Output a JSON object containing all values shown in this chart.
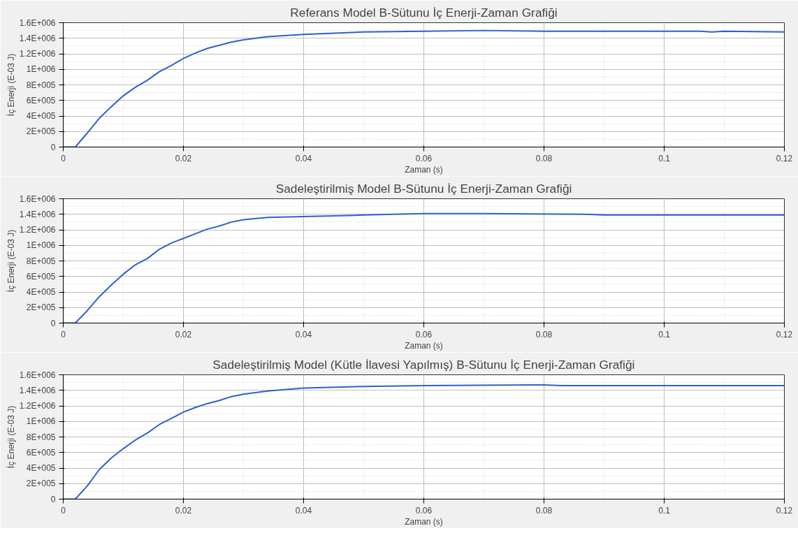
{
  "chart_data": [
    {
      "type": "line",
      "title": "Referans Model B-Sütunu İç Enerji-Zaman Grafiği",
      "xlabel": "Zaman (s)",
      "ylabel": "İç Enerji (E-03 J)",
      "x": [
        0,
        0.002,
        0.004,
        0.006,
        0.008,
        0.01,
        0.012,
        0.014,
        0.016,
        0.018,
        0.02,
        0.022,
        0.024,
        0.026,
        0.028,
        0.03,
        0.034,
        0.04,
        0.05,
        0.06,
        0.07,
        0.08,
        0.1,
        0.106,
        0.108,
        0.11,
        0.12
      ],
      "series": [
        {
          "color": "#2f5fd0",
          "values": [
            0,
            0,
            180000,
            370000,
            520000,
            660000,
            770000,
            860000,
            970000,
            1050000,
            1140000,
            1210000,
            1270000,
            1310000,
            1350000,
            1380000,
            1420000,
            1450000,
            1480000,
            1490000,
            1500000,
            1490000,
            1490000,
            1490000,
            1480000,
            1490000,
            1480000
          ]
        }
      ],
      "xlim": [
        0,
        0.12
      ],
      "xticks": [
        0,
        0.02,
        0.04,
        0.06,
        0.08,
        0.1,
        0.12
      ],
      "ylim": [
        0,
        1600000
      ],
      "yticks": [
        {
          "value": 0,
          "label": "0"
        },
        {
          "value": 200000,
          "label": "2E+005"
        },
        {
          "value": 400000,
          "label": "4E+005"
        },
        {
          "value": 600000,
          "label": "6E+005"
        },
        {
          "value": 800000,
          "label": "8E+005"
        },
        {
          "value": 1000000,
          "label": "1E+006"
        },
        {
          "value": 1200000,
          "label": "1.2E+006"
        },
        {
          "value": 1400000,
          "label": "1.4E+006"
        },
        {
          "value": 1600000,
          "label": "1.6E+006"
        }
      ],
      "grid": true,
      "line_style": "solid"
    },
    {
      "type": "line",
      "title": "Sadeleştirilmiş Model B-Sütunu İç Enerji-Zaman Grafiği",
      "xlabel": "Zaman (s)",
      "ylabel": "İç Enerji (E-03 J)",
      "x": [
        0,
        0.002,
        0.004,
        0.006,
        0.008,
        0.01,
        0.012,
        0.014,
        0.016,
        0.018,
        0.02,
        0.022,
        0.024,
        0.026,
        0.028,
        0.03,
        0.034,
        0.04,
        0.05,
        0.06,
        0.07,
        0.087,
        0.09,
        0.12
      ],
      "series": [
        {
          "color": "#2f5fd0",
          "values": [
            0,
            0,
            160000,
            340000,
            490000,
            630000,
            750000,
            830000,
            950000,
            1030000,
            1090000,
            1150000,
            1210000,
            1250000,
            1300000,
            1330000,
            1360000,
            1370000,
            1390000,
            1410000,
            1410000,
            1400000,
            1390000,
            1390000
          ]
        }
      ],
      "xlim": [
        0,
        0.12
      ],
      "xticks": [
        0,
        0.02,
        0.04,
        0.06,
        0.08,
        0.1,
        0.12
      ],
      "ylim": [
        0,
        1600000
      ],
      "yticks": [
        {
          "value": 0,
          "label": "0"
        },
        {
          "value": 200000,
          "label": "2E+005"
        },
        {
          "value": 400000,
          "label": "4E+005"
        },
        {
          "value": 600000,
          "label": "6E+005"
        },
        {
          "value": 800000,
          "label": "8E+005"
        },
        {
          "value": 1000000,
          "label": "1E+006"
        },
        {
          "value": 1200000,
          "label": "1.2E+006"
        },
        {
          "value": 1400000,
          "label": "1.4E+006"
        },
        {
          "value": 1600000,
          "label": "1.6E+006"
        }
      ],
      "grid": true,
      "line_style": "solid"
    },
    {
      "type": "line",
      "title": "Sadeleştirilmiş Model (Kütle İlavesi Yapılmış) B-Sütunu İç Enerji-Zaman Grafiği",
      "xlabel": "Zaman (s)",
      "ylabel": "İç Enerji (E-03 J)",
      "x": [
        0,
        0.002,
        0.004,
        0.006,
        0.008,
        0.01,
        0.012,
        0.014,
        0.016,
        0.018,
        0.02,
        0.022,
        0.024,
        0.026,
        0.028,
        0.03,
        0.034,
        0.04,
        0.05,
        0.06,
        0.08,
        0.083,
        0.12
      ],
      "series": [
        {
          "color": "#2f5fd0",
          "values": [
            0,
            0,
            170000,
            380000,
            530000,
            650000,
            760000,
            850000,
            960000,
            1040000,
            1120000,
            1180000,
            1230000,
            1270000,
            1320000,
            1350000,
            1390000,
            1430000,
            1450000,
            1460000,
            1470000,
            1460000,
            1460000
          ]
        }
      ],
      "xlim": [
        0,
        0.12
      ],
      "xticks": [
        0,
        0.02,
        0.04,
        0.06,
        0.08,
        0.1,
        0.12
      ],
      "ylim": [
        0,
        1600000
      ],
      "yticks": [
        {
          "value": 0,
          "label": "0"
        },
        {
          "value": 200000,
          "label": "2E+005"
        },
        {
          "value": 400000,
          "label": "4E+005"
        },
        {
          "value": 600000,
          "label": "6E+005"
        },
        {
          "value": 800000,
          "label": "8E+005"
        },
        {
          "value": 1000000,
          "label": "1E+006"
        },
        {
          "value": 1200000,
          "label": "1.2E+006"
        },
        {
          "value": 1400000,
          "label": "1.4E+006"
        },
        {
          "value": 1600000,
          "label": "1.6E+006"
        }
      ],
      "grid": true,
      "line_style": "solid"
    }
  ]
}
